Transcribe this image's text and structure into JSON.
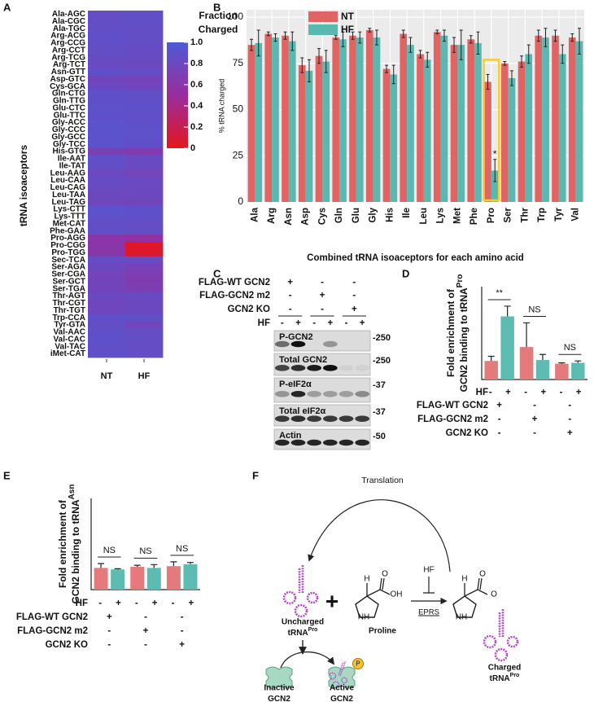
{
  "panels": [
    "A",
    "B",
    "C",
    "D",
    "E",
    "F"
  ],
  "chart_data": [
    {
      "type": "heatmap",
      "ylabel": "tRNA isoaceptors",
      "legend_title": [
        "Fraction",
        "Charged"
      ],
      "categories": [
        "Ala-AGC",
        "Ala-CGC",
        "Ala-TGC",
        "Arg-ACG",
        "Arg-CCG",
        "Arg-CCT",
        "Arg-TCG",
        "Arg-TCT",
        "Asn-GTT",
        "Asp-GTC",
        "Cys-GCA",
        "Gln-CTG",
        "Gln-TTG",
        "Glu-CTC",
        "Glu-TTC",
        "Gly-ACC",
        "Gly-CCC",
        "Gly-GCC",
        "Gly-TCC",
        "His-GTG",
        "Ile-AAT",
        "Ile-TAT",
        "Leu-AAG",
        "Leu-CAA",
        "Leu-CAG",
        "Leu-TAA",
        "Leu-TAG",
        "Lys-CTT",
        "Lys-TTT",
        "Met-CAT",
        "Phe-GAA",
        "Pro-AGG",
        "Pro-CGG",
        "Pro-TGG",
        "Sec-TCA",
        "Ser-AGA",
        "Ser-CGA",
        "Ser-GCT",
        "Ser-TGA",
        "Thr-AGT",
        "Thr-CGT",
        "Thr-TGT",
        "Trp-CCA",
        "Tyr-GTA",
        "Val-AAC",
        "Val-CAC",
        "Val-TAC",
        "iMet-CAT"
      ],
      "series": [
        {
          "name": "NT",
          "values": [
            0.85,
            0.86,
            0.85,
            0.88,
            0.87,
            0.86,
            0.84,
            0.82,
            0.88,
            0.76,
            0.8,
            0.88,
            0.88,
            0.89,
            0.88,
            0.9,
            0.9,
            0.91,
            0.9,
            0.7,
            0.88,
            0.86,
            0.8,
            0.84,
            0.82,
            0.8,
            0.78,
            0.9,
            0.89,
            0.86,
            0.88,
            0.6,
            0.6,
            0.62,
            0.85,
            0.8,
            0.75,
            0.76,
            0.76,
            0.8,
            0.78,
            0.78,
            0.88,
            0.86,
            0.88,
            0.88,
            0.87,
            0.88
          ]
        },
        {
          "name": "HF",
          "values": [
            0.87,
            0.87,
            0.86,
            0.86,
            0.85,
            0.84,
            0.83,
            0.8,
            0.86,
            0.74,
            0.78,
            0.87,
            0.87,
            0.88,
            0.87,
            0.88,
            0.89,
            0.89,
            0.88,
            0.66,
            0.82,
            0.82,
            0.75,
            0.82,
            0.8,
            0.8,
            0.76,
            0.88,
            0.88,
            0.85,
            0.86,
            0.55,
            0.05,
            0.05,
            0.84,
            0.72,
            0.68,
            0.66,
            0.7,
            0.82,
            0.8,
            0.8,
            0.87,
            0.78,
            0.86,
            0.86,
            0.85,
            0.86
          ]
        }
      ],
      "zlim": [
        0,
        1
      ],
      "zticks": [
        0,
        0.2,
        0.4,
        0.6,
        0.8,
        {
          "value": 1,
          "label": "1.0"
        }
      ],
      "colorscale": [
        [
          0,
          "#e3161d"
        ],
        [
          0.5,
          "#9a2c9e"
        ],
        [
          1,
          "#4d5bd6"
        ]
      ]
    },
    {
      "type": "bar",
      "ylabel": "% tRNA charged",
      "xlabel": "Combined tRNA isoaceptors for each amino acid",
      "categories": [
        "Ala",
        "Arg",
        "Asn",
        "Asp",
        "Cys",
        "Gln",
        "Glu",
        "Gly",
        "His",
        "Ile",
        "Leu",
        "Lys",
        "Met",
        "Phe",
        "Pro",
        "Ser",
        "Thr",
        "Trp",
        "Tyr",
        "Val"
      ],
      "series": [
        {
          "name": "NT",
          "color": "#e06464",
          "values": [
            85,
            91,
            90,
            74,
            79,
            89,
            90,
            93,
            72,
            91,
            80,
            92,
            85,
            88,
            65,
            75,
            76,
            90,
            90,
            89
          ],
          "errors": [
            3,
            1,
            2,
            4,
            4,
            1,
            2,
            1,
            2,
            2,
            2,
            1,
            4,
            2,
            4,
            1,
            3,
            3,
            3,
            2
          ]
        },
        {
          "name": "HF",
          "color": "#5ab8b0",
          "values": [
            86,
            89,
            87,
            71,
            76,
            88,
            89,
            89,
            69,
            85,
            77,
            90,
            85,
            86,
            17,
            67,
            80,
            89,
            80,
            87
          ],
          "errors": [
            7,
            2,
            5,
            6,
            6,
            4,
            3,
            4,
            5,
            4,
            4,
            3,
            8,
            6,
            6,
            4,
            5,
            5,
            5,
            7
          ]
        }
      ],
      "ylim": [
        0,
        104
      ],
      "yticks": [
        0,
        25,
        50,
        75,
        100
      ],
      "grid": true,
      "legend": "top-left",
      "annotations": [
        {
          "text": "*",
          "category": "Pro",
          "series": "HF"
        }
      ],
      "highlight": "Pro",
      "highlight_color": "#f5d02a"
    },
    {
      "type": "bar",
      "ylabel": [
        "Fold enrichment of",
        "GCN2 binding to tRNA"
      ],
      "ylabel_superscript": "Pro",
      "values": [
        1.0,
        3.4,
        1.75,
        1.05,
        0.85,
        0.9
      ],
      "errors": [
        0.25,
        0.55,
        1.3,
        0.3,
        0.05,
        0.1
      ],
      "colors": [
        "#e57a7d",
        "#5cbcb1"
      ],
      "ylim": [
        0,
        5
      ],
      "group_labels": [
        "**",
        "NS",
        "NS"
      ],
      "conditions": [
        {
          "label": "HF",
          "signs": [
            "-",
            "+",
            "-",
            "+",
            "-",
            "+"
          ]
        },
        {
          "label": "FLAG-WT GCN2",
          "signs": [
            "+",
            "-",
            "-"
          ]
        },
        {
          "label": "FLAG-GCN2 m2",
          "signs": [
            "-",
            "+",
            "-"
          ]
        },
        {
          "label": "GCN2 KO",
          "signs": [
            "-",
            "-",
            "+"
          ]
        }
      ]
    },
    {
      "type": "bar",
      "ylabel": [
        "Fold enrichment of",
        "GCN2 binding to tRNA"
      ],
      "ylabel_superscript": "Asn",
      "values": [
        1.0,
        0.93,
        1.05,
        1.0,
        1.08,
        1.17
      ],
      "errors": [
        0.2,
        0.03,
        0.07,
        0.15,
        0.2,
        0.08
      ],
      "colors": [
        "#e57a7d",
        "#5cbcb1"
      ],
      "ylim": [
        0,
        4.2
      ],
      "group_labels": [
        "NS",
        "NS",
        "NS"
      ],
      "conditions": [
        {
          "label": "HF",
          "signs": [
            "-",
            "+",
            "-",
            "+",
            "-",
            "+"
          ]
        },
        {
          "label": "FLAG-WT GCN2",
          "signs": [
            "+",
            "-",
            "-"
          ]
        },
        {
          "label": "FLAG-GCN2 m2",
          "signs": [
            "-",
            "+",
            "-"
          ]
        },
        {
          "label": "GCN2 KO",
          "signs": [
            "-",
            "-",
            "+"
          ]
        }
      ]
    }
  ],
  "blot": {
    "conditions": [
      {
        "label": "FLAG-WT GCN2",
        "signs": [
          "+",
          "-",
          "-"
        ]
      },
      {
        "label": "FLAG-GCN2 m2",
        "signs": [
          "-",
          "+",
          "-"
        ]
      },
      {
        "label": "GCN2 KO",
        "signs": [
          "-",
          "-",
          "+"
        ]
      },
      {
        "label": "HF",
        "signs": [
          "-",
          "+",
          "-",
          "+",
          "-",
          "+"
        ]
      }
    ],
    "bands": [
      {
        "label": "P-GCN2",
        "size": "-250"
      },
      {
        "label": "Total GCN2",
        "size": "-250"
      },
      {
        "label": "P-eIF2α",
        "size": "-37"
      },
      {
        "label": "Total eIF2α",
        "size": "-37"
      },
      {
        "label": "Actin",
        "size": "-50"
      }
    ]
  },
  "diagram": {
    "translation": "Translation",
    "inhibitor": "HF",
    "enzyme": "EPRS",
    "plus": "+",
    "proline": {
      "name": "Proline",
      "atoms": [
        "H",
        "O",
        "OH",
        "NH"
      ]
    },
    "charged_atoms": [
      "H",
      "O",
      "O",
      "NH"
    ],
    "uncharged": [
      "Uncharged",
      "tRNA",
      "Pro"
    ],
    "charged": [
      "Charged",
      "tRNA",
      "Pro"
    ],
    "inactive": [
      "Inactive",
      "GCN2"
    ],
    "active": [
      "Active",
      "GCN2"
    ],
    "phospho": "P"
  }
}
